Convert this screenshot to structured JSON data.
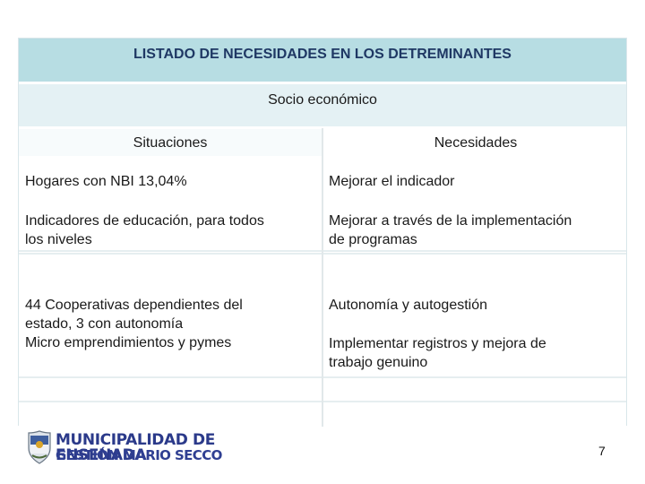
{
  "table": {
    "title": "LISTADO DE NECESIDADES EN LOS DETREMINANTES",
    "section": "Socio económico",
    "headers": {
      "left": "Situaciones",
      "right": "Necesidades"
    },
    "rows": [
      {
        "left": [
          "Hogares con NBI 13,04%"
        ],
        "right": [
          "Mejorar el indicador"
        ]
      },
      {
        "left": [
          "Indicadores de educación, para todos",
          "los niveles"
        ],
        "right": [
          "Mejorar a través de la implementación",
          "de programas"
        ]
      },
      {
        "left": [
          "44 Cooperativas dependientes del",
          "estado, 3 con autonomía",
          "Micro emprendimientos y pymes"
        ],
        "right": [
          "Autonomía y autogestión",
          "Implementar registros y mejora de",
          "trabajo genuino"
        ]
      }
    ]
  },
  "footer": {
    "org_name": "MUNICIPALIDAD DE ENSENADA",
    "subtitle": "GESTIÓN MARIO SECCO",
    "page_number": "7"
  },
  "colors": {
    "title_bg": "#b7dde3",
    "section_bg": "#e4f1f4",
    "title_text": "#1f3864",
    "logo_text": "#2b3a8a"
  },
  "icons": {
    "seal": "municipal-seal-icon"
  }
}
